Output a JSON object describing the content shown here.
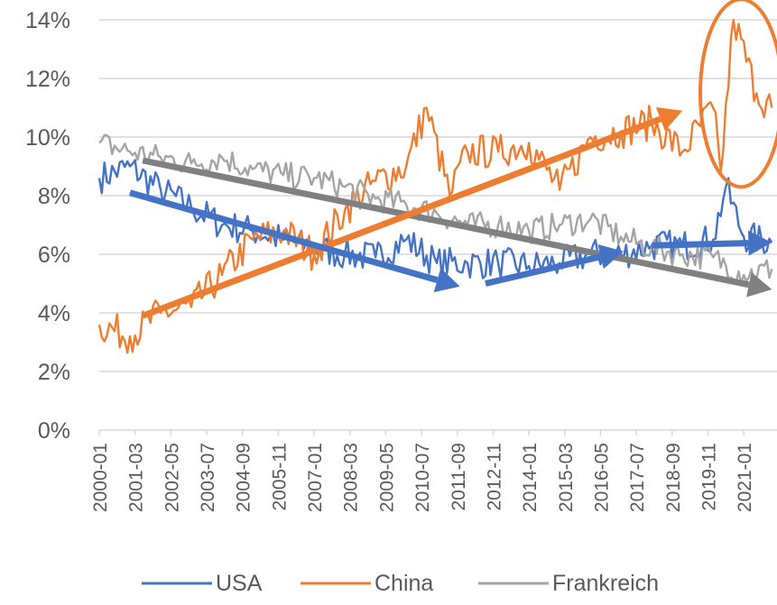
{
  "chart_data": {
    "type": "line",
    "title": "",
    "xlabel": "",
    "ylabel": "",
    "ylim": [
      0,
      14
    ],
    "y_ticks": [
      "0%",
      "2%",
      "4%",
      "6%",
      "8%",
      "10%",
      "12%",
      "14%"
    ],
    "x_tick_labels": [
      "2000-01",
      "2001-03",
      "2002-05",
      "2003-07",
      "2004-09",
      "2005-11",
      "2007-01",
      "2008-03",
      "2009-05",
      "2010-07",
      "2011-09",
      "2012-11",
      "2014-01",
      "2015-03",
      "2016-05",
      "2017-07",
      "2018-09",
      "2019-11",
      "2021-01"
    ],
    "x_range": [
      "2000-01",
      "2021-12"
    ],
    "grid": "horizontal",
    "legend_position": "bottom",
    "series": [
      {
        "name": "USA",
        "color": "#4472C4",
        "x": [
          "2000-01",
          "2001-01",
          "2002-01",
          "2003-01",
          "2004-01",
          "2005-01",
          "2006-01",
          "2007-01",
          "2008-01",
          "2009-01",
          "2010-01",
          "2011-01",
          "2012-01",
          "2013-01",
          "2014-01",
          "2015-01",
          "2016-01",
          "2017-01",
          "2018-01",
          "2019-01",
          "2020-01",
          "2020-06",
          "2021-01",
          "2021-12"
        ],
        "values": [
          8.6,
          9.0,
          8.2,
          7.6,
          7.0,
          6.8,
          6.5,
          6.2,
          6.0,
          5.9,
          6.5,
          5.7,
          5.7,
          5.7,
          5.6,
          5.7,
          6.0,
          6.0,
          6.3,
          6.3,
          6.5,
          8.3,
          6.6,
          6.4
        ]
      },
      {
        "name": "China",
        "color": "#ED7D31",
        "x": [
          "2000-01",
          "2001-01",
          "2002-01",
          "2003-01",
          "2004-01",
          "2005-01",
          "2006-01",
          "2007-01",
          "2008-01",
          "2009-01",
          "2010-01",
          "2010-09",
          "2011-06",
          "2012-01",
          "2013-01",
          "2014-01",
          "2015-01",
          "2016-01",
          "2017-01",
          "2018-01",
          "2019-01",
          "2020-01",
          "2020-04",
          "2020-09",
          "2021-06",
          "2021-12"
        ],
        "values": [
          3.6,
          3.2,
          4.0,
          4.2,
          5.3,
          6.5,
          6.8,
          6.0,
          7.5,
          8.5,
          9.0,
          11.0,
          8.0,
          9.5,
          9.5,
          9.8,
          8.2,
          10.0,
          10.2,
          10.5,
          9.5,
          11.0,
          8.8,
          14.0,
          11.5,
          11.0
        ]
      },
      {
        "name": "Frankreich",
        "color": "#A5A5A5",
        "x": [
          "2000-01",
          "2001-01",
          "2002-01",
          "2003-01",
          "2004-01",
          "2005-01",
          "2006-01",
          "2007-01",
          "2008-01",
          "2009-01",
          "2010-01",
          "2011-01",
          "2012-01",
          "2013-01",
          "2014-01",
          "2015-01",
          "2016-01",
          "2017-01",
          "2018-01",
          "2019-01",
          "2020-01",
          "2021-01",
          "2021-12"
        ],
        "values": [
          9.8,
          9.5,
          9.3,
          9.1,
          9.3,
          8.9,
          8.7,
          8.6,
          8.3,
          7.9,
          7.7,
          7.4,
          7.0,
          7.0,
          6.8,
          7.0,
          7.2,
          6.6,
          6.2,
          6.0,
          5.9,
          5.3,
          5.5
        ]
      }
    ],
    "annotations": {
      "arrows": [
        {
          "color": "#808080",
          "from": [
            "2001-06",
            9.2
          ],
          "to": [
            "2021-12",
            4.8
          ]
        },
        {
          "color": "#ED7D31",
          "from": [
            "2001-06",
            3.9
          ],
          "to": [
            "2019-01",
            10.9
          ]
        },
        {
          "color": "#4472C4",
          "from": [
            "2001-01",
            8.1
          ],
          "to": [
            "2011-10",
            4.9
          ]
        },
        {
          "color": "#4472C4",
          "from": [
            "2012-08",
            5.0
          ],
          "to": [
            "2017-02",
            6.1
          ]
        },
        {
          "color": "#4472C4",
          "from": [
            "2018-01",
            6.3
          ],
          "to": [
            "2021-12",
            6.4
          ]
        }
      ],
      "ellipse": {
        "color": "#ED7D31",
        "center": [
          "2020-12",
          11.5
        ],
        "rx_months": 16,
        "ry_units": 3.2
      }
    }
  }
}
